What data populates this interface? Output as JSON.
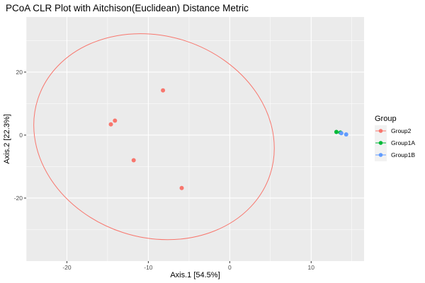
{
  "chart_data": {
    "type": "scatter",
    "title": "PCoA CLR Plot with Aitchison(Euclidean) Distance Metric",
    "xlabel": "Axis.1   [54.5%]",
    "ylabel": "Axis.2   [22.3%]",
    "xlim": [
      -25,
      16.5
    ],
    "ylim": [
      -40,
      37.5
    ],
    "xticks": [
      -20,
      -10,
      0,
      10
    ],
    "yticks": [
      -20,
      0,
      20
    ],
    "grid": true,
    "legend": {
      "title": "Group",
      "position": "right"
    },
    "series": [
      {
        "name": "Group2",
        "color": "#F8766D",
        "points": [
          [
            -8.2,
            14.2
          ],
          [
            -14.1,
            4.6
          ],
          [
            -14.6,
            3.4
          ],
          [
            -11.8,
            -8.0
          ],
          [
            -5.9,
            -16.8
          ]
        ]
      },
      {
        "name": "Group1A",
        "color": "#00BA38",
        "points": [
          [
            13.1,
            1.0
          ],
          [
            13.6,
            0.8
          ]
        ]
      },
      {
        "name": "Group1B",
        "color": "#619CFF",
        "points": [
          [
            13.7,
            0.6
          ],
          [
            14.3,
            0.2
          ]
        ]
      }
    ],
    "ellipse": {
      "series": "Group2",
      "center": [
        -9.3,
        -0.5
      ],
      "semi_axis_x": 15.0,
      "semi_axis_y": 32.0,
      "rotation_deg": 18
    }
  }
}
